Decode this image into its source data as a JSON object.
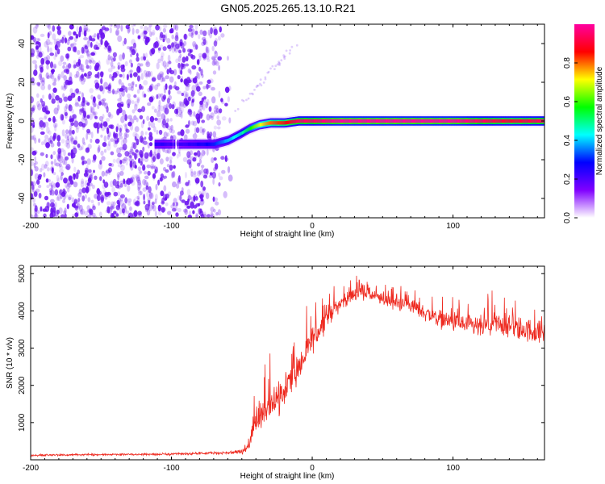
{
  "title": "GN05.2025.265.13.10.R21",
  "colors": {
    "noise_scatter": "#6a12f0",
    "snr_line": "#ee2a20",
    "axis": "#000000"
  },
  "chart_data": [
    {
      "type": "heatmap",
      "xlabel": "Height of straight line (km)",
      "ylabel": "Frequency (Hz)",
      "xlim": [
        -200,
        165
      ],
      "ylim": [
        -50,
        50
      ],
      "xticks": [
        -200,
        -100,
        0,
        100
      ],
      "yticks": [
        -40,
        -20,
        0,
        20,
        40
      ],
      "colorbar": {
        "label": "Normalized spectral amplitude",
        "range": [
          0,
          1
        ],
        "ticks": [
          0.0,
          0.2,
          0.4,
          0.6,
          0.8
        ],
        "tick_labels": [
          "0.0",
          "0.2",
          "0.4",
          "0.6",
          "0.8"
        ],
        "colormap": [
          "#ffffff",
          "#8000ff",
          "#0000ff",
          "#00ffff",
          "#00ff00",
          "#ffff00",
          "#ff0000",
          "#ff00a0"
        ]
      },
      "noise_region_x": [
        -200,
        -58
      ],
      "signal_trace": {
        "x": [
          -112,
          -95,
          -70,
          -60,
          -52,
          -45,
          -38,
          -30,
          -20,
          -10,
          0,
          20,
          60,
          100,
          140,
          165
        ],
        "frequency": [
          -12,
          -12,
          -12,
          -10,
          -7,
          -4,
          -2,
          -1,
          -1,
          0,
          0,
          0,
          0,
          0,
          0,
          0
        ],
        "amplitude": [
          0.25,
          0.22,
          0.3,
          0.4,
          0.45,
          0.55,
          0.7,
          0.8,
          0.85,
          0.95,
          0.95,
          1.0,
          1.0,
          1.0,
          0.9,
          0.95
        ]
      }
    },
    {
      "type": "line",
      "xlabel": "Height of straight line (km)",
      "ylabel": "SNR (10 * v/v)",
      "xlim": [
        -200,
        165
      ],
      "ylim": [
        0,
        5200
      ],
      "xticks": [
        -200,
        -100,
        0,
        100
      ],
      "yticks": [
        1000,
        2000,
        3000,
        4000,
        5000
      ],
      "series": [
        {
          "name": "SNR",
          "x": [
            -200,
            -150,
            -100,
            -60,
            -50,
            -45,
            -40,
            -35,
            -30,
            -25,
            -20,
            -15,
            -10,
            -5,
            0,
            5,
            10,
            15,
            20,
            25,
            30,
            35,
            40,
            50,
            60,
            70,
            80,
            90,
            100,
            110,
            120,
            130,
            140,
            150,
            165
          ],
          "values": [
            120,
            140,
            150,
            190,
            220,
            350,
            1050,
            1250,
            1500,
            1650,
            1900,
            2250,
            2400,
            2800,
            3200,
            3500,
            3800,
            4050,
            4200,
            4350,
            4450,
            4500,
            4450,
            4300,
            4200,
            4150,
            3950,
            3800,
            3700,
            3600,
            3550,
            3650,
            3550,
            3500,
            3400
          ],
          "jitter": [
            40,
            40,
            45,
            60,
            90,
            200,
            650,
            700,
            750,
            750,
            700,
            650,
            650,
            600,
            550,
            450,
            400,
            350,
            300,
            300,
            280,
            250,
            250,
            250,
            280,
            280,
            320,
            350,
            380,
            420,
            450,
            450,
            480,
            480,
            450
          ]
        }
      ]
    }
  ]
}
